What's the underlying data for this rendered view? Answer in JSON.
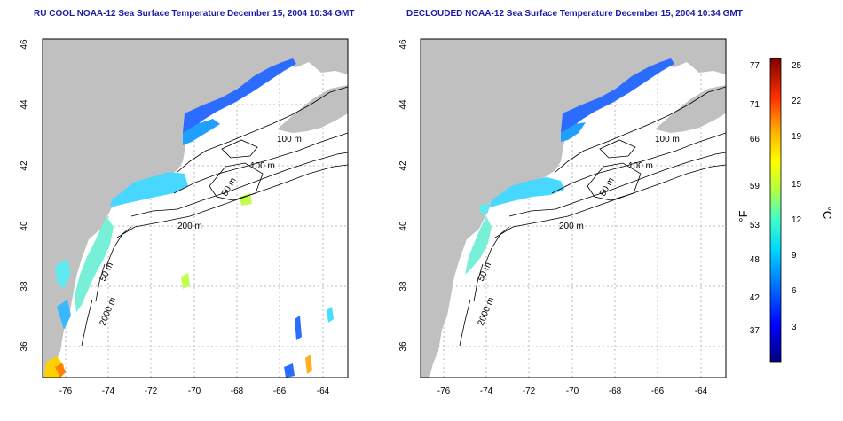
{
  "colors": {
    "land": "#c0c0c0",
    "ocean": "#ffffff",
    "title": "#1a1aa6",
    "grid": "#b8b8b8",
    "contour": "#000000"
  },
  "left_panel": {
    "title": "RU COOL NOAA-12 Sea Surface Temperature December 15, 2004 10:34 GMT",
    "contour_labels": [
      "100 m",
      "100 m",
      "50 m",
      "200 m",
      "50 m",
      "2000 m"
    ]
  },
  "right_panel": {
    "title": "DECLOUDED NOAA-12 Sea Surface Temperature December 15, 2004 10:34 GMT",
    "contour_labels": [
      "100 m",
      "100 m",
      "50 m",
      "200 m",
      "50 m",
      "2000 m"
    ]
  },
  "axes": {
    "lon_ticks": [
      "-76",
      "-74",
      "-72",
      "-70",
      "-68",
      "-66",
      "-64"
    ],
    "lat_ticks": [
      "36",
      "38",
      "40",
      "42",
      "44",
      "46"
    ]
  },
  "colorbar": {
    "fahrenheit_label": "°F",
    "celsius_label": "°C",
    "fahrenheit_ticks": [
      "77",
      "71",
      "66",
      "59",
      "53",
      "48",
      "42",
      "37"
    ],
    "celsius_ticks": [
      "25",
      "22",
      "19",
      "15",
      "12",
      "9",
      "6",
      "3"
    ],
    "range_celsius": [
      0,
      26
    ],
    "gradient": [
      "#000080",
      "#0000ff",
      "#0080ff",
      "#00e0ff",
      "#40ffc0",
      "#c0ff40",
      "#ffff00",
      "#ffa000",
      "#ff2000",
      "#800000"
    ]
  }
}
